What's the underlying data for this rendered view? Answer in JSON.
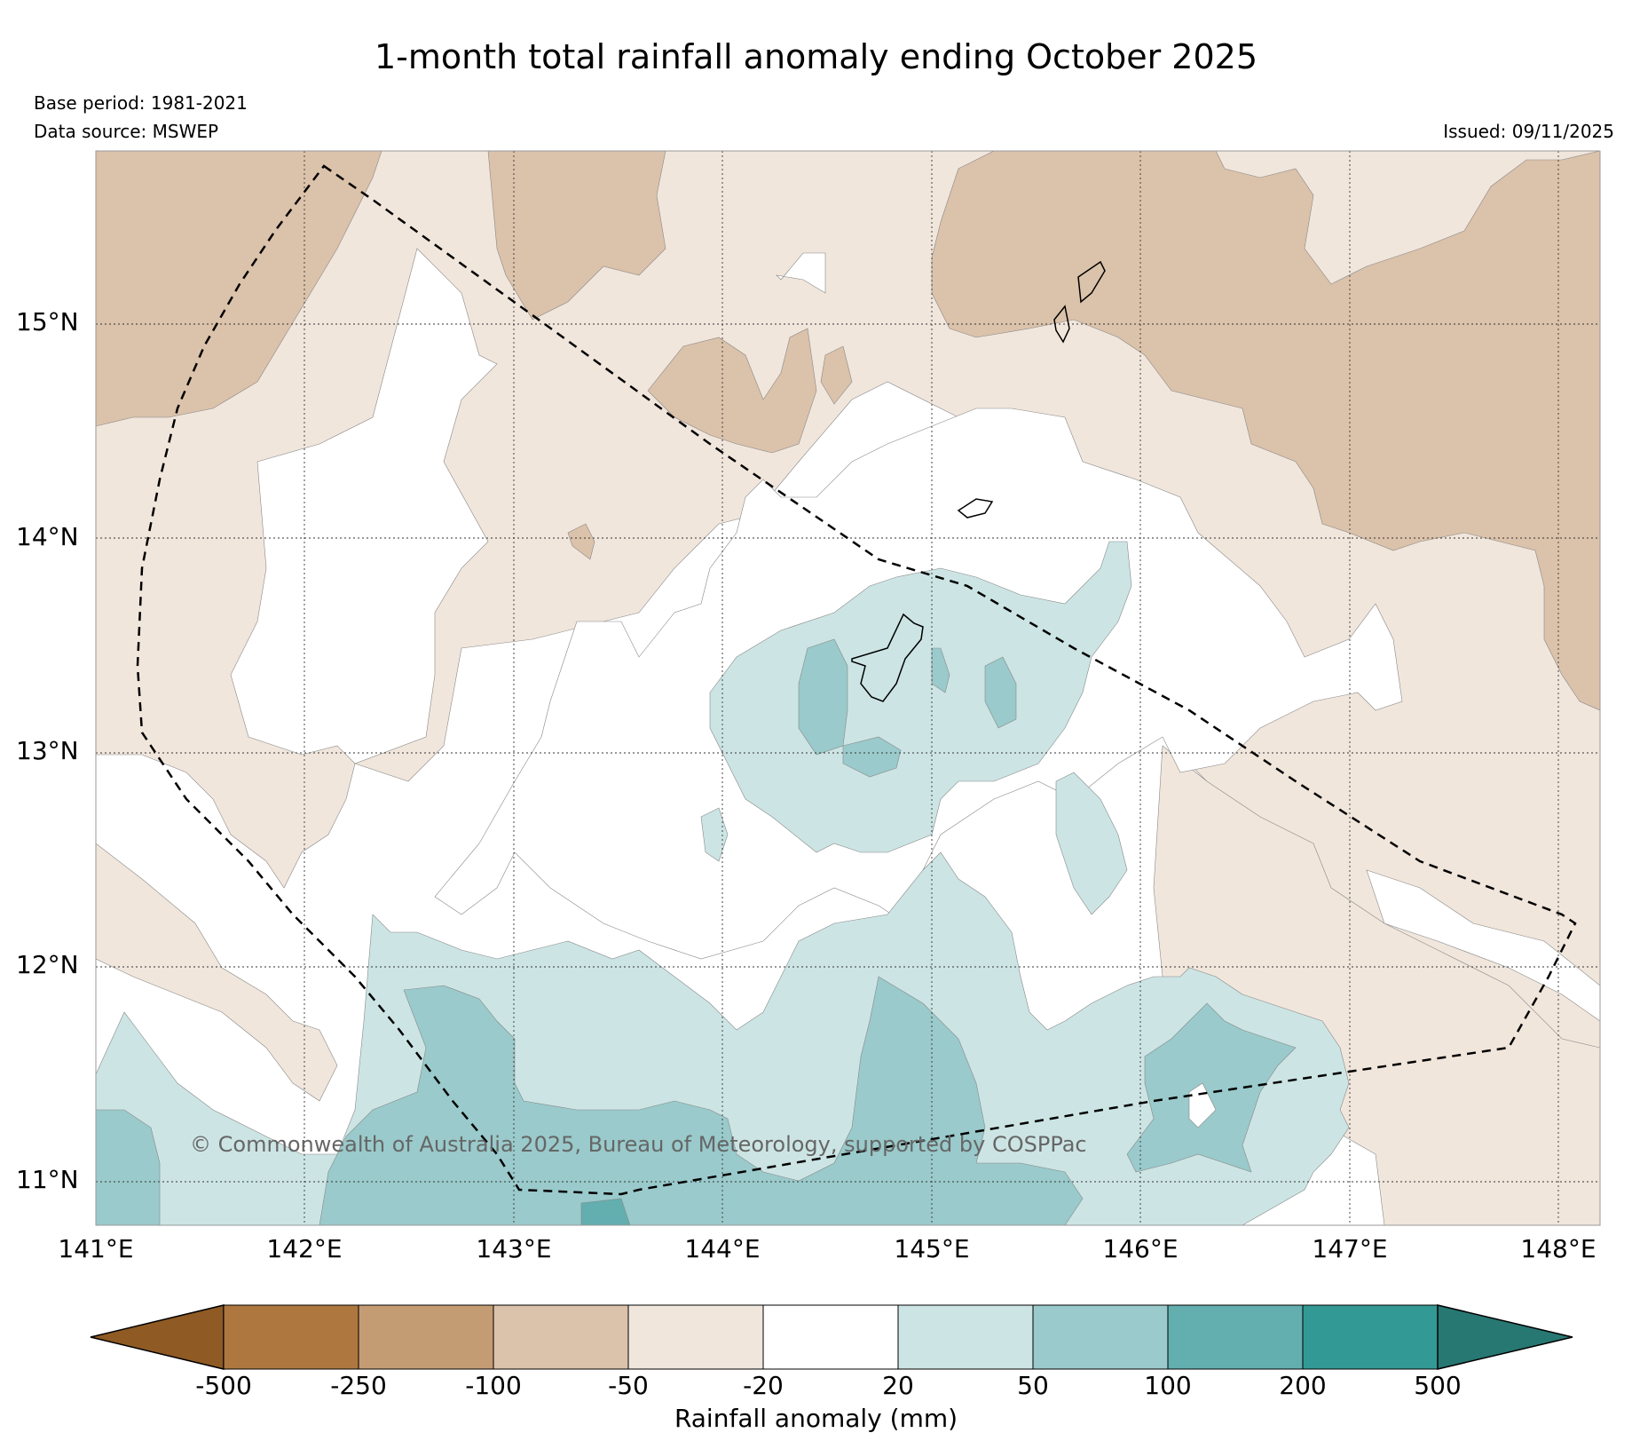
{
  "title": "1-month total rainfall anomaly ending October 2025",
  "meta": {
    "base_period": "Base period: 1981-2021",
    "data_source": "Data source: MSWEP",
    "issued": "Issued: 09/11/2025"
  },
  "copyright": "© Commonwealth of Australia 2025, Bureau of Meteorology, supported by COSPPac",
  "lat_labels": [
    "15°N",
    "14°N",
    "13°N",
    "12°N",
    "11°N"
  ],
  "lon_labels": [
    "141°E",
    "142°E",
    "143°E",
    "144°E",
    "145°E",
    "146°E",
    "147°E",
    "148°E"
  ],
  "colorbar": {
    "title": "Rainfall anomaly (mm)",
    "ticks": [
      "-500",
      "-250",
      "-100",
      "-50",
      "-20",
      "20",
      "50",
      "100",
      "200",
      "500"
    ],
    "colors": [
      "#8f5a24",
      "#ad773f",
      "#c49c74",
      "#dbc2aa",
      "#f1e6dc",
      "#ffffff",
      "#cce5e4",
      "#9acacb",
      "#63aeaf",
      "#339995",
      "#277772"
    ]
  }
}
